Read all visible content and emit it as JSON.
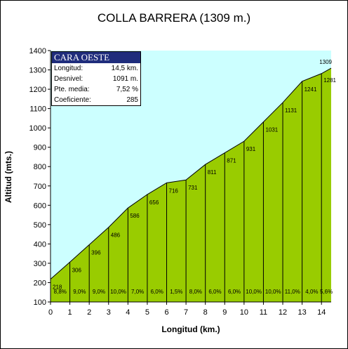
{
  "chart_data": {
    "type": "area",
    "title": "COLLA BARRERA (1309 m.)",
    "xlabel": "Longitud (km.)",
    "ylabel": "Altitud (mts.)",
    "xlim": [
      0,
      14.5
    ],
    "ylim": [
      100,
      1400
    ],
    "x_ticks": [
      "0",
      "1",
      "2",
      "3",
      "4",
      "5",
      "6",
      "7",
      "8",
      "9",
      "10",
      "11",
      "12",
      "13",
      "14"
    ],
    "y_ticks": [
      "100",
      "200",
      "300",
      "400",
      "500",
      "600",
      "700",
      "800",
      "900",
      "1000",
      "1100",
      "1200",
      "1300",
      "1400"
    ],
    "x": [
      0,
      1,
      2,
      3,
      4,
      5,
      6,
      7,
      8,
      9,
      10,
      11,
      12,
      13,
      14,
      14.5
    ],
    "altitudes": [
      218,
      306,
      396,
      486,
      586,
      656,
      716,
      731,
      811,
      871,
      931,
      1031,
      1131,
      1241,
      1281,
      1309
    ],
    "point_labels": [
      "218",
      "306",
      "396",
      "486",
      "586",
      "656",
      "716",
      "731",
      "811",
      "871",
      "931",
      "1031",
      "1131",
      "1241",
      "1281",
      "1309"
    ],
    "gradients": [
      "8,8%",
      "9,0%",
      "9,0%",
      "10,0%",
      "7,0%",
      "6,0%",
      "1,5%",
      "8,0%",
      "6,0%",
      "6,0%",
      "10,0%",
      "10,0%",
      "11,0%",
      "4,0%",
      "5,6%"
    ],
    "colors": {
      "sky": "#ccffff",
      "ground": "#99cc00",
      "line": "#000000"
    }
  },
  "info": {
    "header": "CARA OESTE",
    "rows": [
      {
        "label": "Longitud:",
        "value": "14,5 km."
      },
      {
        "label": "Desnivel:",
        "value": "1091 m."
      },
      {
        "label": "Pte. media:",
        "value": "7,52 %"
      },
      {
        "label": "Coeficiente:",
        "value": "285"
      }
    ]
  }
}
